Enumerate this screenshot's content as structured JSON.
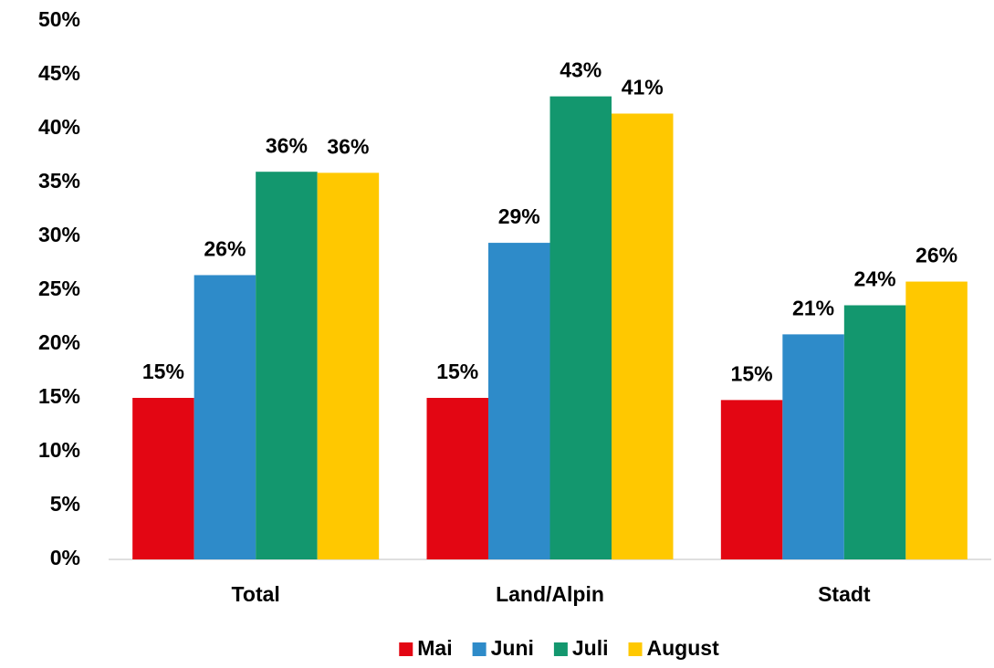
{
  "chart_data": {
    "type": "bar",
    "categories": [
      "Total",
      "Land/Alpin",
      "Stadt"
    ],
    "series": [
      {
        "name": "Mai",
        "color": "#e30613",
        "values": [
          15.0,
          15.0,
          14.8
        ],
        "value_labels": [
          "15%",
          "15%",
          "15%"
        ]
      },
      {
        "name": "Juni",
        "color": "#2e8bc9",
        "values": [
          26.4,
          29.4,
          20.9
        ],
        "value_labels": [
          "26%",
          "29%",
          "21%"
        ]
      },
      {
        "name": "Juli",
        "color": "#13976e",
        "values": [
          36.0,
          43.0,
          23.6
        ],
        "value_labels": [
          "36%",
          "43%",
          "24%"
        ]
      },
      {
        "name": "August",
        "color": "#ffc800",
        "values": [
          35.9,
          41.4,
          25.8
        ],
        "value_labels": [
          "36%",
          "41%",
          "26%"
        ]
      }
    ],
    "ylim": [
      0,
      50
    ],
    "yticks": [
      {
        "value": 0,
        "label": "0%"
      },
      {
        "value": 5,
        "label": "5%"
      },
      {
        "value": 10,
        "label": "10%"
      },
      {
        "value": 15,
        "label": "15%"
      },
      {
        "value": 20,
        "label": "20%"
      },
      {
        "value": 25,
        "label": "25%"
      },
      {
        "value": 30,
        "label": "30%"
      },
      {
        "value": 35,
        "label": "35%"
      },
      {
        "value": 40,
        "label": "40%"
      },
      {
        "value": 45,
        "label": "45%"
      },
      {
        "value": 50,
        "label": "50%"
      }
    ],
    "grid": false,
    "legend": "bottom"
  }
}
